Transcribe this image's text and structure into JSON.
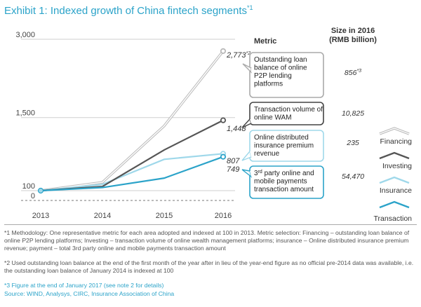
{
  "title": "Exhibit 1: Indexed growth of China fintech segments",
  "title_sup": "*1",
  "chart_data": {
    "type": "line",
    "title": "Exhibit 1: Indexed growth of China fintech segments*1",
    "x": [
      "2013",
      "2014",
      "2015",
      "2016"
    ],
    "ylim": [
      0,
      3000
    ],
    "yticks": [
      "3,000",
      "1,500",
      "100",
      "0"
    ],
    "ytick_values": [
      3000,
      1500,
      100,
      0
    ],
    "series": [
      {
        "name": "Financing",
        "values": [
          100,
          260,
          1340,
          2773
        ],
        "color": "#b9b9b9",
        "end_label": "2,773",
        "end_label_sup": "*2"
      },
      {
        "name": "Investing",
        "values": [
          100,
          180,
          880,
          1448
        ],
        "color": "#555555",
        "end_label": "1,448",
        "end_label_sup": ""
      },
      {
        "name": "Insurance",
        "values": [
          100,
          220,
          700,
          807
        ],
        "color": "#9fd8ea",
        "end_label": "807",
        "end_label_sup": ""
      },
      {
        "name": "Transaction",
        "values": [
          100,
          160,
          340,
          749
        ],
        "color": "#2ba3c9",
        "end_label": "749",
        "end_label_sup": ""
      }
    ],
    "metric_header": "Metric",
    "size_header": "Size in 2016\n(RMB billion)",
    "metrics": [
      {
        "label": "Outstanding loan balance of online P2P lending platforms",
        "size": "856",
        "size_sup": "*3"
      },
      {
        "label": "Transaction volume of online WAM",
        "size": "10,825",
        "size_sup": ""
      },
      {
        "label": "Online distributed insurance premium revenue",
        "size": "235",
        "size_sup": ""
      },
      {
        "label": "3rd party online and mobile payments transaction amount",
        "size": "54,470",
        "size_sup": ""
      }
    ],
    "legend_position": "right"
  },
  "footnotes": {
    "n1": "*1 Methodology: One representative metric for each area adopted and indexed at 100 in 2013. Metric selection: Financing – outstanding loan balance of online P2P lending platforms; Investing – transaction volume of online wealth management platforms; insurance – Online distributed insurance premium revenue; payment – total 3rd party online and mobile payments transaction amount",
    "n2": "*2 Used outstanding loan balance at the end of the first month of the year after in lieu of the year-end figure as no official pre-2014 data was available, i.e. the outstanding loan balance of January 2014 is indexed at 100",
    "n3": "*3 Figure at the end of January 2017 (see note 2 for details)",
    "source": "Source: WIND, Analysys, CIRC, Insurance Association of China"
  }
}
